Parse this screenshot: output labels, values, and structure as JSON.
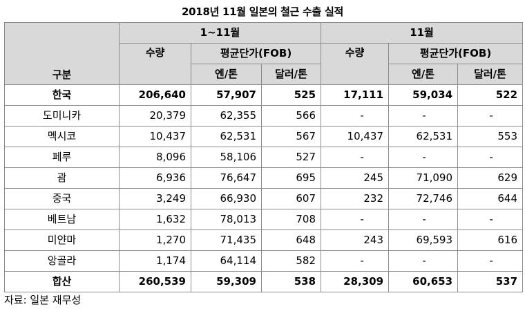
{
  "title": "2018년 11월 일본의 철근 수출 실적",
  "header": {
    "category": "구분",
    "period_ytd": "1~11월",
    "period_month": "11월",
    "qty": "수량",
    "avg_price": "평균단가(FOB)",
    "yen_per_ton": "엔/톤",
    "usd_per_ton": "달러/톤"
  },
  "rows": [
    {
      "country": "한국",
      "ytd_qty": "206,640",
      "ytd_yen": "57,907",
      "ytd_usd": "525",
      "m_qty": "17,111",
      "m_yen": "59,034",
      "m_usd": "522"
    },
    {
      "country": "도미니카",
      "ytd_qty": "20,379",
      "ytd_yen": "62,355",
      "ytd_usd": "566",
      "m_qty": "-",
      "m_yen": "-",
      "m_usd": "-"
    },
    {
      "country": "멕시코",
      "ytd_qty": "10,437",
      "ytd_yen": "62,531",
      "ytd_usd": "567",
      "m_qty": "10,437",
      "m_yen": "62,531",
      "m_usd": "553"
    },
    {
      "country": "페루",
      "ytd_qty": "8,096",
      "ytd_yen": "58,106",
      "ytd_usd": "527",
      "m_qty": "-",
      "m_yen": "-",
      "m_usd": "-"
    },
    {
      "country": "괌",
      "ytd_qty": "6,936",
      "ytd_yen": "76,647",
      "ytd_usd": "695",
      "m_qty": "245",
      "m_yen": "71,090",
      "m_usd": "629"
    },
    {
      "country": "중국",
      "ytd_qty": "3,249",
      "ytd_yen": "66,930",
      "ytd_usd": "607",
      "m_qty": "232",
      "m_yen": "72,746",
      "m_usd": "644"
    },
    {
      "country": "베트남",
      "ytd_qty": "1,632",
      "ytd_yen": "78,013",
      "ytd_usd": "708",
      "m_qty": "-",
      "m_yen": "-",
      "m_usd": "-"
    },
    {
      "country": "미얀마",
      "ytd_qty": "1,270",
      "ytd_yen": "71,435",
      "ytd_usd": "648",
      "m_qty": "243",
      "m_yen": "69,593",
      "m_usd": "616"
    },
    {
      "country": "앙골라",
      "ytd_qty": "1,174",
      "ytd_yen": "64,114",
      "ytd_usd": "582",
      "m_qty": "-",
      "m_yen": "-",
      "m_usd": "-"
    }
  ],
  "total": {
    "country": "합산",
    "ytd_qty": "260,539",
    "ytd_yen": "59,309",
    "ytd_usd": "538",
    "m_qty": "28,309",
    "m_yen": "60,653",
    "m_usd": "537"
  },
  "source": "자료: 일본 재무성",
  "colors": {
    "header_bg": "#d9d9d9",
    "border": "#8a8a8a"
  }
}
